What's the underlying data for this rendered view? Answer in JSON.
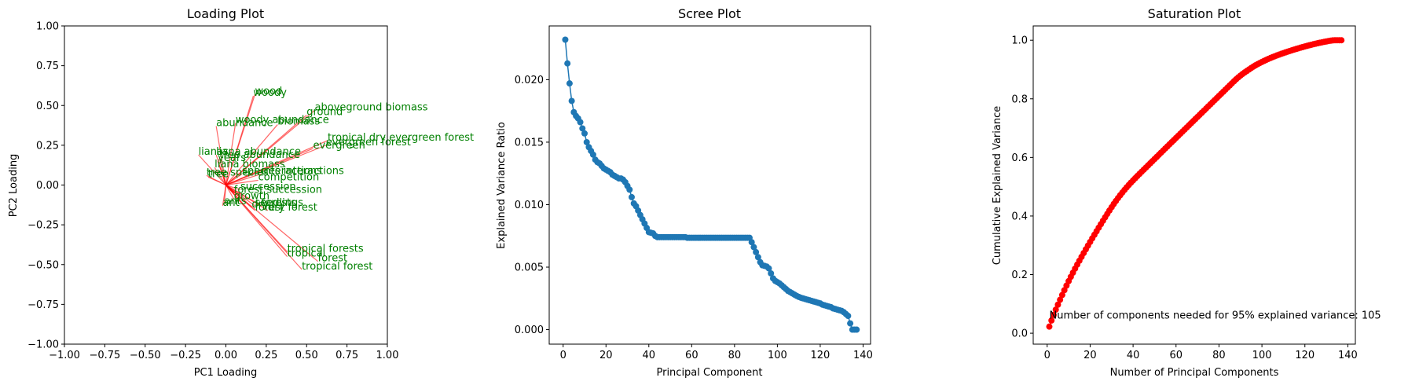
{
  "chart_data": [
    {
      "type": "scatter",
      "title": "Loading Plot",
      "xlabel": "PC1 Loading",
      "ylabel": "PC2 Loading",
      "xlim": [
        -1.0,
        1.0
      ],
      "ylim": [
        -1.0,
        1.0
      ],
      "xticks": [
        "−1.00",
        "−0.75",
        "−0.50",
        "−0.25",
        "0.00",
        "0.25",
        "0.50",
        "0.75",
        "1.00"
      ],
      "yticks": [
        "−1.00",
        "−0.75",
        "−0.50",
        "−0.25",
        "0.00",
        "0.25",
        "0.50",
        "0.75",
        "1.00"
      ],
      "arrow_color": "#ff0000",
      "label_color": "#008000",
      "loadings": [
        {
          "label": "wood",
          "x": 0.18,
          "y": 0.57
        },
        {
          "label": "woody",
          "x": 0.17,
          "y": 0.56
        },
        {
          "label": "aboveground biomass",
          "x": 0.55,
          "y": 0.47
        },
        {
          "label": "ground",
          "x": 0.5,
          "y": 0.44
        },
        {
          "label": "woody abundance",
          "x": 0.06,
          "y": 0.39
        },
        {
          "label": "biomass",
          "x": 0.32,
          "y": 0.38
        },
        {
          "label": "abundance",
          "x": -0.06,
          "y": 0.37
        },
        {
          "label": "tropical dry evergreen forest",
          "x": 0.63,
          "y": 0.28
        },
        {
          "label": "evergreen forest",
          "x": 0.62,
          "y": 0.25
        },
        {
          "label": "evergreen",
          "x": 0.54,
          "y": 0.23
        },
        {
          "label": "lianas",
          "x": -0.17,
          "y": 0.19
        },
        {
          "label": "liana abundance",
          "x": -0.06,
          "y": 0.19
        },
        {
          "label": "tree abundance",
          "x": -0.04,
          "y": 0.17
        },
        {
          "label": "years",
          "x": -0.05,
          "y": 0.15
        },
        {
          "label": "liana biomass",
          "x": -0.07,
          "y": 0.11
        },
        {
          "label": "interactions",
          "x": 0.22,
          "y": 0.07
        },
        {
          "label": "species interactions",
          "x": 0.1,
          "y": 0.07
        },
        {
          "label": "competition",
          "x": 0.2,
          "y": 0.03
        },
        {
          "label": "tree species",
          "x": -0.12,
          "y": 0.06
        },
        {
          "label": "tree",
          "x": -0.11,
          "y": 0.05
        },
        {
          "label": "succession",
          "x": 0.09,
          "y": -0.03
        },
        {
          "label": "forest succession",
          "x": 0.05,
          "y": -0.05
        },
        {
          "label": "growth",
          "x": 0.05,
          "y": -0.09
        },
        {
          "label": "seedlings",
          "x": 0.18,
          "y": -0.13
        },
        {
          "label": "forest",
          "x": 0.18,
          "y": -0.16
        },
        {
          "label": "dry forest",
          "x": 0.26,
          "y": -0.16
        },
        {
          "label": "dry",
          "x": 0.16,
          "y": -0.14
        },
        {
          "label": "forests",
          "x": 0.22,
          "y": -0.13
        },
        {
          "label": "ant",
          "x": -0.02,
          "y": -0.13
        },
        {
          "label": "ants",
          "x": -0.01,
          "y": -0.12
        },
        {
          "label": "tropical forests",
          "x": 0.38,
          "y": -0.42
        },
        {
          "label": "tropical",
          "x": 0.38,
          "y": -0.45
        },
        {
          "label": "forest",
          "x": 0.57,
          "y": -0.48
        },
        {
          "label": "tropical forest",
          "x": 0.47,
          "y": -0.53
        }
      ]
    },
    {
      "type": "line",
      "title": "Scree Plot",
      "xlabel": "Principal Component",
      "ylabel": "Explained Variance Ratio",
      "xlim": [
        -6.5,
        143.5
      ],
      "ylim": [
        -0.00116,
        0.0243
      ],
      "xticks": [
        "0",
        "20",
        "40",
        "60",
        "80",
        "100",
        "120",
        "140"
      ],
      "yticks": [
        "0.000",
        "0.005",
        "0.010",
        "0.015",
        "0.020"
      ],
      "color": "#1f77b4",
      "x_range": [
        1,
        137
      ],
      "values": [
        0.0232,
        0.0213,
        0.0197,
        0.0183,
        0.0174,
        0.0171,
        0.0169,
        0.0166,
        0.0161,
        0.0157,
        0.015,
        0.0146,
        0.0143,
        0.014,
        0.0136,
        0.0134,
        0.0133,
        0.0131,
        0.0129,
        0.0128,
        0.0127,
        0.0126,
        0.0124,
        0.0123,
        0.0122,
        0.0121,
        0.0121,
        0.012,
        0.0118,
        0.0115,
        0.0112,
        0.0106,
        0.0101,
        0.00988,
        0.00953,
        0.00917,
        0.00883,
        0.00849,
        0.00814,
        0.0078,
        0.00775,
        0.0077,
        0.0075,
        0.0074,
        0.0074,
        0.0074,
        0.0074,
        0.0074,
        0.0074,
        0.0074,
        0.0074,
        0.0074,
        0.0074,
        0.0074,
        0.0074,
        0.0074,
        0.0074,
        0.00735,
        0.00735,
        0.00735,
        0.00735,
        0.00735,
        0.00735,
        0.00735,
        0.00735,
        0.00735,
        0.00735,
        0.00735,
        0.00735,
        0.00735,
        0.00735,
        0.00735,
        0.00735,
        0.00735,
        0.00735,
        0.00735,
        0.00735,
        0.00735,
        0.00735,
        0.00735,
        0.00735,
        0.00735,
        0.00735,
        0.00735,
        0.00735,
        0.00735,
        0.00735,
        0.007,
        0.0066,
        0.0062,
        0.0058,
        0.0054,
        0.00515,
        0.0051,
        0.00505,
        0.0049,
        0.0045,
        0.0041,
        0.0039,
        0.0038,
        0.0037,
        0.00355,
        0.0034,
        0.00325,
        0.0031,
        0.003,
        0.0029,
        0.0028,
        0.0027,
        0.00262,
        0.00255,
        0.0025,
        0.00245,
        0.0024,
        0.00235,
        0.0023,
        0.00225,
        0.0022,
        0.00215,
        0.0021,
        0.002,
        0.00195,
        0.0019,
        0.00185,
        0.0018,
        0.0017,
        0.00165,
        0.0016,
        0.00155,
        0.0015,
        0.0014,
        0.00125,
        0.0011,
        0.0005,
        0.0,
        0.0,
        0.0
      ]
    },
    {
      "type": "line",
      "title": "Saturation Plot",
      "xlabel": "Number of Principal Components",
      "ylabel": "Cumulative Explained Variance",
      "xlim": [
        -6.5,
        143.5
      ],
      "ylim": [
        -0.0373,
        1.0488
      ],
      "xticks": [
        "0",
        "20",
        "40",
        "60",
        "80",
        "100",
        "120",
        "140"
      ],
      "yticks": [
        "0.0",
        "0.2",
        "0.4",
        "0.6",
        "0.8",
        "1.0"
      ],
      "color": "#ff0000",
      "annotation": "Number of components needed for 95% explained variance: 105",
      "annotation_x": 1,
      "annotation_y": 0.05
    }
  ]
}
